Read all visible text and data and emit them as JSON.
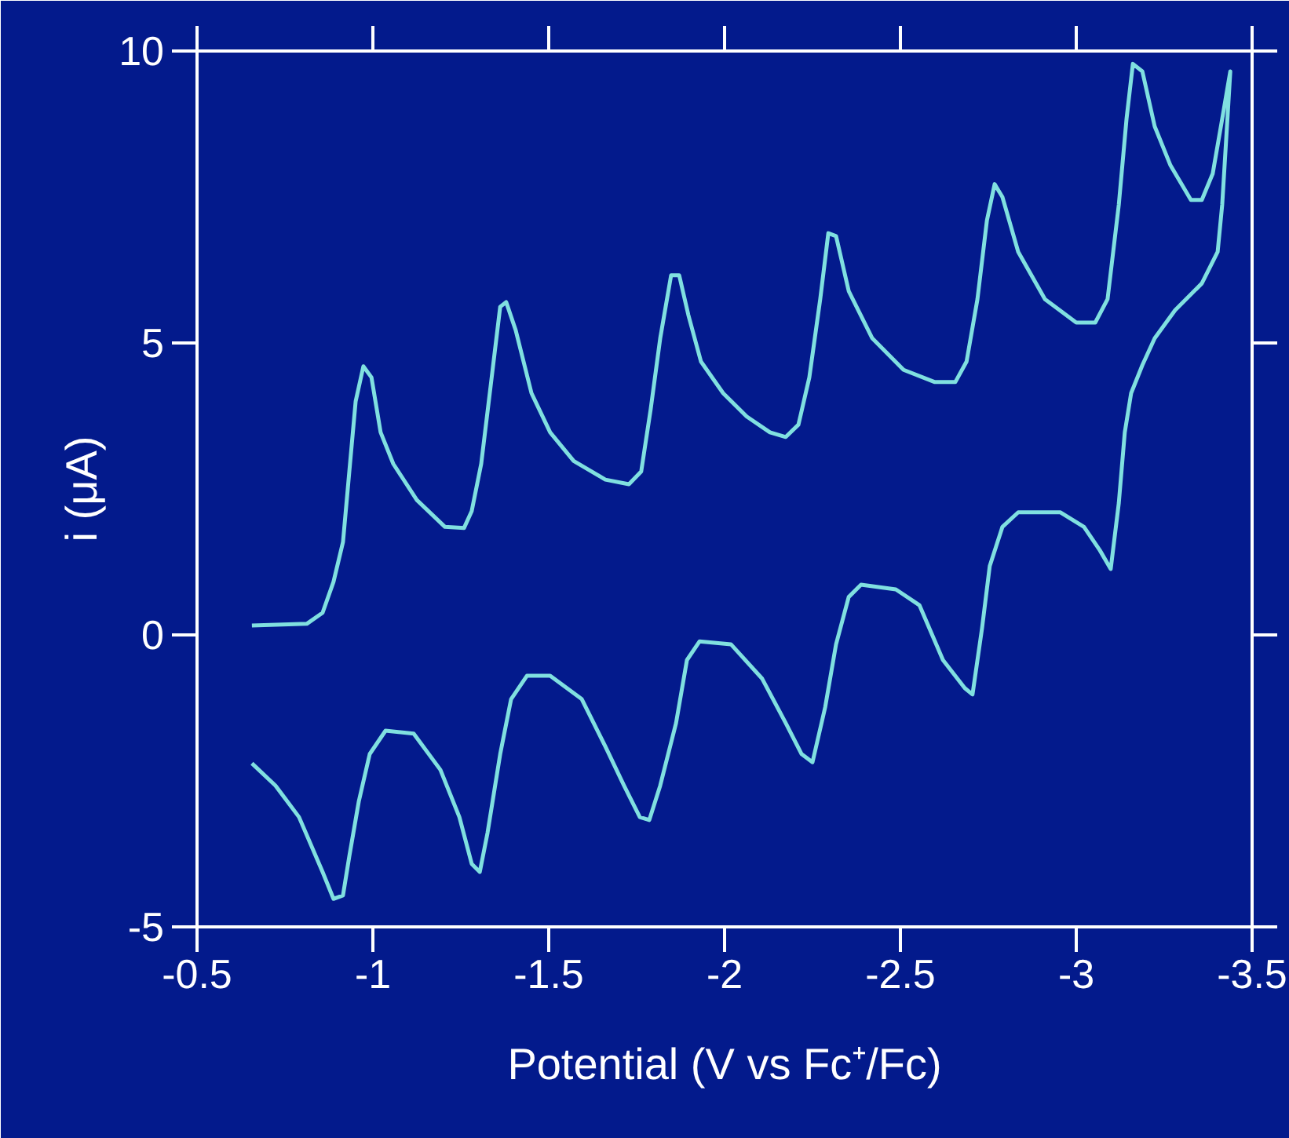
{
  "chart_data": {
    "type": "line",
    "xlabel": "Potential (V vs Fc⁺/Fc)",
    "ylabel": "i (μA)",
    "xlim": [
      -0.5,
      -3.5
    ],
    "xticks": [
      -0.5,
      -1,
      -1.5,
      -2,
      -2.5,
      -3,
      -3.5
    ],
    "ylim": [
      -5,
      10
    ],
    "yticks": [
      -5,
      0,
      5,
      10
    ],
    "grid": false,
    "marker": "none",
    "line_style": "solid",
    "series": [
      {
        "color": "#80e0e0",
        "x": [
          -0.656,
          -0.812,
          -0.857,
          -0.888,
          -0.915,
          -0.933,
          -0.951,
          -0.973,
          -0.996,
          -1.022,
          -1.058,
          -1.125,
          -1.205,
          -1.259,
          -1.281,
          -1.308,
          -1.335,
          -1.362,
          -1.379,
          -1.406,
          -1.451,
          -1.504,
          -1.571,
          -1.661,
          -1.728,
          -1.763,
          -1.79,
          -1.817,
          -1.848,
          -1.871,
          -1.897,
          -1.933,
          -1.996,
          -2.063,
          -2.129,
          -2.174,
          -2.21,
          -2.241,
          -2.272,
          -2.295,
          -2.317,
          -2.353,
          -2.42,
          -2.509,
          -2.598,
          -2.656,
          -2.688,
          -2.719,
          -2.746,
          -2.768,
          -2.79,
          -2.835,
          -2.911,
          -3.0,
          -3.054,
          -3.089,
          -3.121,
          -3.143,
          -3.161,
          -3.188,
          -3.223,
          -3.268,
          -3.326,
          -3.357,
          -3.388,
          -3.415,
          -3.438,
          -3.415,
          -3.402,
          -3.357,
          -3.281,
          -3.223,
          -3.188,
          -3.156,
          -3.138,
          -3.121,
          -3.098,
          -3.067,
          -3.022,
          -2.955,
          -2.835,
          -2.79,
          -2.754,
          -2.732,
          -2.705,
          -2.683,
          -2.621,
          -2.554,
          -2.487,
          -2.388,
          -2.353,
          -2.317,
          -2.286,
          -2.25,
          -2.219,
          -2.174,
          -2.107,
          -2.018,
          -1.929,
          -1.893,
          -1.862,
          -1.817,
          -1.786,
          -1.759,
          -1.714,
          -1.661,
          -1.594,
          -1.504,
          -1.438,
          -1.393,
          -1.362,
          -1.326,
          -1.304,
          -1.281,
          -1.246,
          -1.192,
          -1.116,
          -1.036,
          -0.991,
          -0.96,
          -0.933,
          -0.915,
          -0.888,
          -0.857,
          -0.79,
          -0.723,
          -0.656
        ],
        "values": [
          0.16,
          0.19,
          0.38,
          0.91,
          1.59,
          2.8,
          4.0,
          4.6,
          4.41,
          3.47,
          2.93,
          2.31,
          1.85,
          1.83,
          2.12,
          2.93,
          4.27,
          5.62,
          5.7,
          5.22,
          4.14,
          3.47,
          2.98,
          2.66,
          2.58,
          2.8,
          3.87,
          5.08,
          6.16,
          6.16,
          5.48,
          4.68,
          4.14,
          3.74,
          3.47,
          3.39,
          3.6,
          4.41,
          5.75,
          6.88,
          6.83,
          5.89,
          5.08,
          4.54,
          4.33,
          4.33,
          4.68,
          5.75,
          7.1,
          7.72,
          7.5,
          6.56,
          5.75,
          5.35,
          5.35,
          5.75,
          7.37,
          8.84,
          9.78,
          9.65,
          8.71,
          8.04,
          7.45,
          7.45,
          7.9,
          8.84,
          9.65,
          7.37,
          6.56,
          6.02,
          5.56,
          5.08,
          4.62,
          4.14,
          3.47,
          2.26,
          1.13,
          1.45,
          1.85,
          2.1,
          2.1,
          1.85,
          1.18,
          0.11,
          -1.02,
          -0.91,
          -0.43,
          0.51,
          0.78,
          0.86,
          0.65,
          -0.16,
          -1.24,
          -2.18,
          -2.04,
          -1.51,
          -0.75,
          -0.16,
          -0.11,
          -0.43,
          -1.51,
          -2.58,
          -3.17,
          -3.12,
          -2.58,
          -1.91,
          -1.1,
          -0.7,
          -0.7,
          -1.1,
          -2.04,
          -3.39,
          -4.06,
          -3.92,
          -3.12,
          -2.31,
          -1.69,
          -1.64,
          -2.04,
          -2.85,
          -3.79,
          -4.46,
          -4.52,
          -4.06,
          -3.12,
          -2.58,
          -2.2
        ]
      }
    ]
  }
}
